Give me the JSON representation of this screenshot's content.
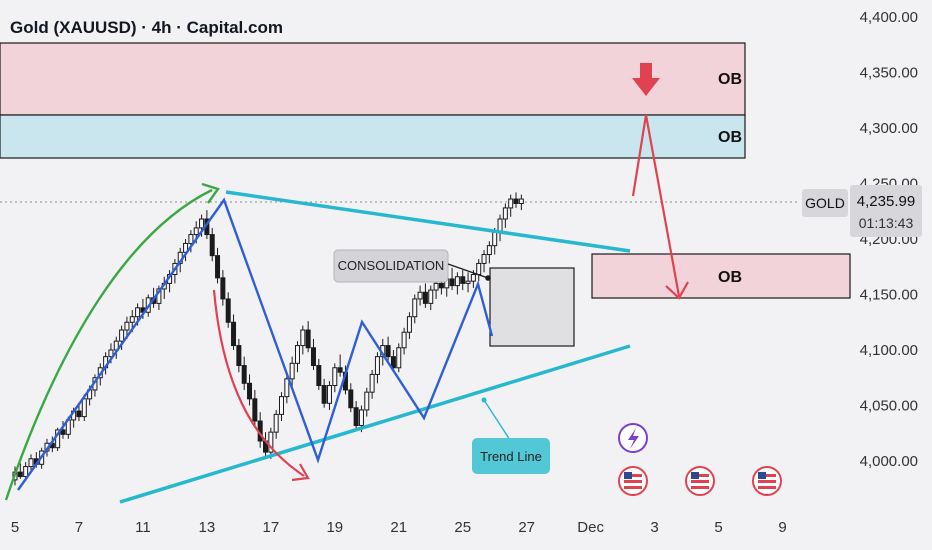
{
  "header": {
    "title": "Gold (XAUUSD) · 4h · Capital.com"
  },
  "price_tag": {
    "symbol": "GOLD",
    "price": "4,235.99",
    "countdown": "01:13:43"
  },
  "colors": {
    "bull": "#1b1b1b",
    "bear": "#1b1b1b",
    "ob_red": "#f2d3d9",
    "ob_blue": "#c9e6ee",
    "trend": "#27b8cf",
    "wave": "#2e5fd6",
    "arrow_red": "#e0434f",
    "arrow_green": "#3aa845"
  },
  "chart_data": {
    "type": "candlestick",
    "title": "Gold (XAUUSD) · 4h · Capital.com",
    "ylim": [
      3965,
      4410
    ],
    "y_ticks": [
      "4,000.00",
      "4,050.00",
      "4,100.00",
      "4,150.00",
      "4,200.00",
      "4,250.00",
      "4,300.00",
      "4,350.00",
      "4,400.00"
    ],
    "y_tick_values": [
      4000,
      4050,
      4100,
      4150,
      4200,
      4250,
      4300,
      4350,
      4400
    ],
    "x_ticks": [
      "5",
      "7",
      "11",
      "13",
      "17",
      "19",
      "21",
      "25",
      "27",
      "Dec",
      "3",
      "5",
      "9"
    ],
    "x_tick_index": [
      0,
      12,
      24,
      36,
      48,
      60,
      72,
      84,
      96,
      108,
      120,
      132,
      144
    ],
    "last_price": 4235.99,
    "ohlc": [
      [
        3983,
        3995,
        3978,
        3990
      ],
      [
        3990,
        3998,
        3984,
        3986
      ],
      [
        3986,
        3999,
        3982,
        3995
      ],
      [
        3995,
        4006,
        3990,
        4002
      ],
      [
        4002,
        4008,
        3994,
        3997
      ],
      [
        3997,
        4012,
        3993,
        4009
      ],
      [
        4009,
        4020,
        4004,
        4016
      ],
      [
        4016,
        4022,
        4008,
        4012
      ],
      [
        4012,
        4030,
        4009,
        4028
      ],
      [
        4028,
        4036,
        4020,
        4024
      ],
      [
        4024,
        4040,
        4020,
        4037
      ],
      [
        4037,
        4048,
        4030,
        4045
      ],
      [
        4045,
        4052,
        4036,
        4040
      ],
      [
        4040,
        4060,
        4036,
        4056
      ],
      [
        4056,
        4068,
        4050,
        4064
      ],
      [
        4064,
        4078,
        4058,
        4075
      ],
      [
        4075,
        4088,
        4068,
        4084
      ],
      [
        4084,
        4098,
        4078,
        4094
      ],
      [
        4094,
        4106,
        4088,
        4100
      ],
      [
        4100,
        4112,
        4092,
        4108
      ],
      [
        4108,
        4122,
        4100,
        4118
      ],
      [
        4118,
        4130,
        4110,
        4125
      ],
      [
        4125,
        4136,
        4116,
        4130
      ],
      [
        4130,
        4142,
        4122,
        4138
      ],
      [
        4138,
        4146,
        4128,
        4134
      ],
      [
        4134,
        4150,
        4130,
        4147
      ],
      [
        4147,
        4156,
        4138,
        4142
      ],
      [
        4142,
        4158,
        4136,
        4155
      ],
      [
        4155,
        4166,
        4146,
        4160
      ],
      [
        4160,
        4172,
        4152,
        4168
      ],
      [
        4168,
        4182,
        4160,
        4178
      ],
      [
        4178,
        4192,
        4170,
        4188
      ],
      [
        4188,
        4200,
        4180,
        4196
      ],
      [
        4196,
        4208,
        4188,
        4204
      ],
      [
        4204,
        4216,
        4196,
        4210
      ],
      [
        4210,
        4222,
        4202,
        4218
      ],
      [
        4218,
        4226,
        4200,
        4204
      ],
      [
        4204,
        4210,
        4180,
        4185
      ],
      [
        4185,
        4192,
        4160,
        4165
      ],
      [
        4165,
        4172,
        4140,
        4146
      ],
      [
        4146,
        4152,
        4120,
        4125
      ],
      [
        4125,
        4132,
        4100,
        4104
      ],
      [
        4104,
        4110,
        4080,
        4086
      ],
      [
        4086,
        4094,
        4064,
        4070
      ],
      [
        4070,
        4078,
        4050,
        4056
      ],
      [
        4056,
        4064,
        4030,
        4036
      ],
      [
        4036,
        4044,
        4012,
        4018
      ],
      [
        4018,
        4026,
        4004,
        4008
      ],
      [
        4008,
        4030,
        4002,
        4026
      ],
      [
        4026,
        4046,
        4020,
        4042
      ],
      [
        4042,
        4062,
        4036,
        4058
      ],
      [
        4058,
        4078,
        4052,
        4074
      ],
      [
        4074,
        4094,
        4066,
        4088
      ],
      [
        4088,
        4108,
        4080,
        4104
      ],
      [
        4104,
        4122,
        4096,
        4118
      ],
      [
        4118,
        4126,
        4098,
        4102
      ],
      [
        4102,
        4110,
        4082,
        4086
      ],
      [
        4086,
        4092,
        4064,
        4068
      ],
      [
        4068,
        4074,
        4048,
        4052
      ],
      [
        4052,
        4072,
        4046,
        4068
      ],
      [
        4068,
        4088,
        4062,
        4084
      ],
      [
        4084,
        4096,
        4076,
        4080
      ],
      [
        4080,
        4086,
        4060,
        4064
      ],
      [
        4064,
        4070,
        4044,
        4048
      ],
      [
        4048,
        4054,
        4028,
        4032
      ],
      [
        4032,
        4050,
        4026,
        4046
      ],
      [
        4046,
        4066,
        4040,
        4062
      ],
      [
        4062,
        4082,
        4056,
        4078
      ],
      [
        4078,
        4098,
        4070,
        4094
      ],
      [
        4094,
        4110,
        4086,
        4104
      ],
      [
        4104,
        4112,
        4090,
        4094
      ],
      [
        4094,
        4100,
        4080,
        4084
      ],
      [
        4084,
        4106,
        4080,
        4102
      ],
      [
        4102,
        4120,
        4096,
        4116
      ],
      [
        4116,
        4134,
        4110,
        4130
      ],
      [
        4130,
        4150,
        4124,
        4146
      ],
      [
        4146,
        4158,
        4140,
        4152
      ],
      [
        4152,
        4160,
        4138,
        4142
      ],
      [
        4142,
        4158,
        4136,
        4154
      ],
      [
        4154,
        4166,
        4146,
        4160
      ],
      [
        4160,
        4170,
        4150,
        4156
      ],
      [
        4156,
        4168,
        4148,
        4164
      ],
      [
        4164,
        4174,
        4154,
        4158
      ],
      [
        4158,
        4170,
        4150,
        4166
      ],
      [
        4166,
        4172,
        4154,
        4160
      ],
      [
        4160,
        4170,
        4152,
        4162
      ],
      [
        4162,
        4172,
        4156,
        4168
      ],
      [
        4168,
        4182,
        4162,
        4178
      ],
      [
        4178,
        4190,
        4170,
        4186
      ],
      [
        4186,
        4198,
        4178,
        4194
      ],
      [
        4194,
        4210,
        4186,
        4206
      ],
      [
        4206,
        4222,
        4198,
        4218
      ],
      [
        4218,
        4232,
        4210,
        4228
      ],
      [
        4228,
        4240,
        4220,
        4236
      ],
      [
        4236,
        4242,
        4228,
        4232
      ],
      [
        4232,
        4240,
        4226,
        4236
      ]
    ],
    "annotations": [
      "CONSOLIDATION",
      "Trend Line",
      "OB",
      "OB",
      "OB"
    ],
    "zones": [
      {
        "label": "OB",
        "from": 4315,
        "to": 4375
      },
      {
        "label": "OB",
        "from": 4278,
        "to": 4315
      },
      {
        "label": "OB",
        "from": 4145,
        "to": 4185
      }
    ]
  }
}
